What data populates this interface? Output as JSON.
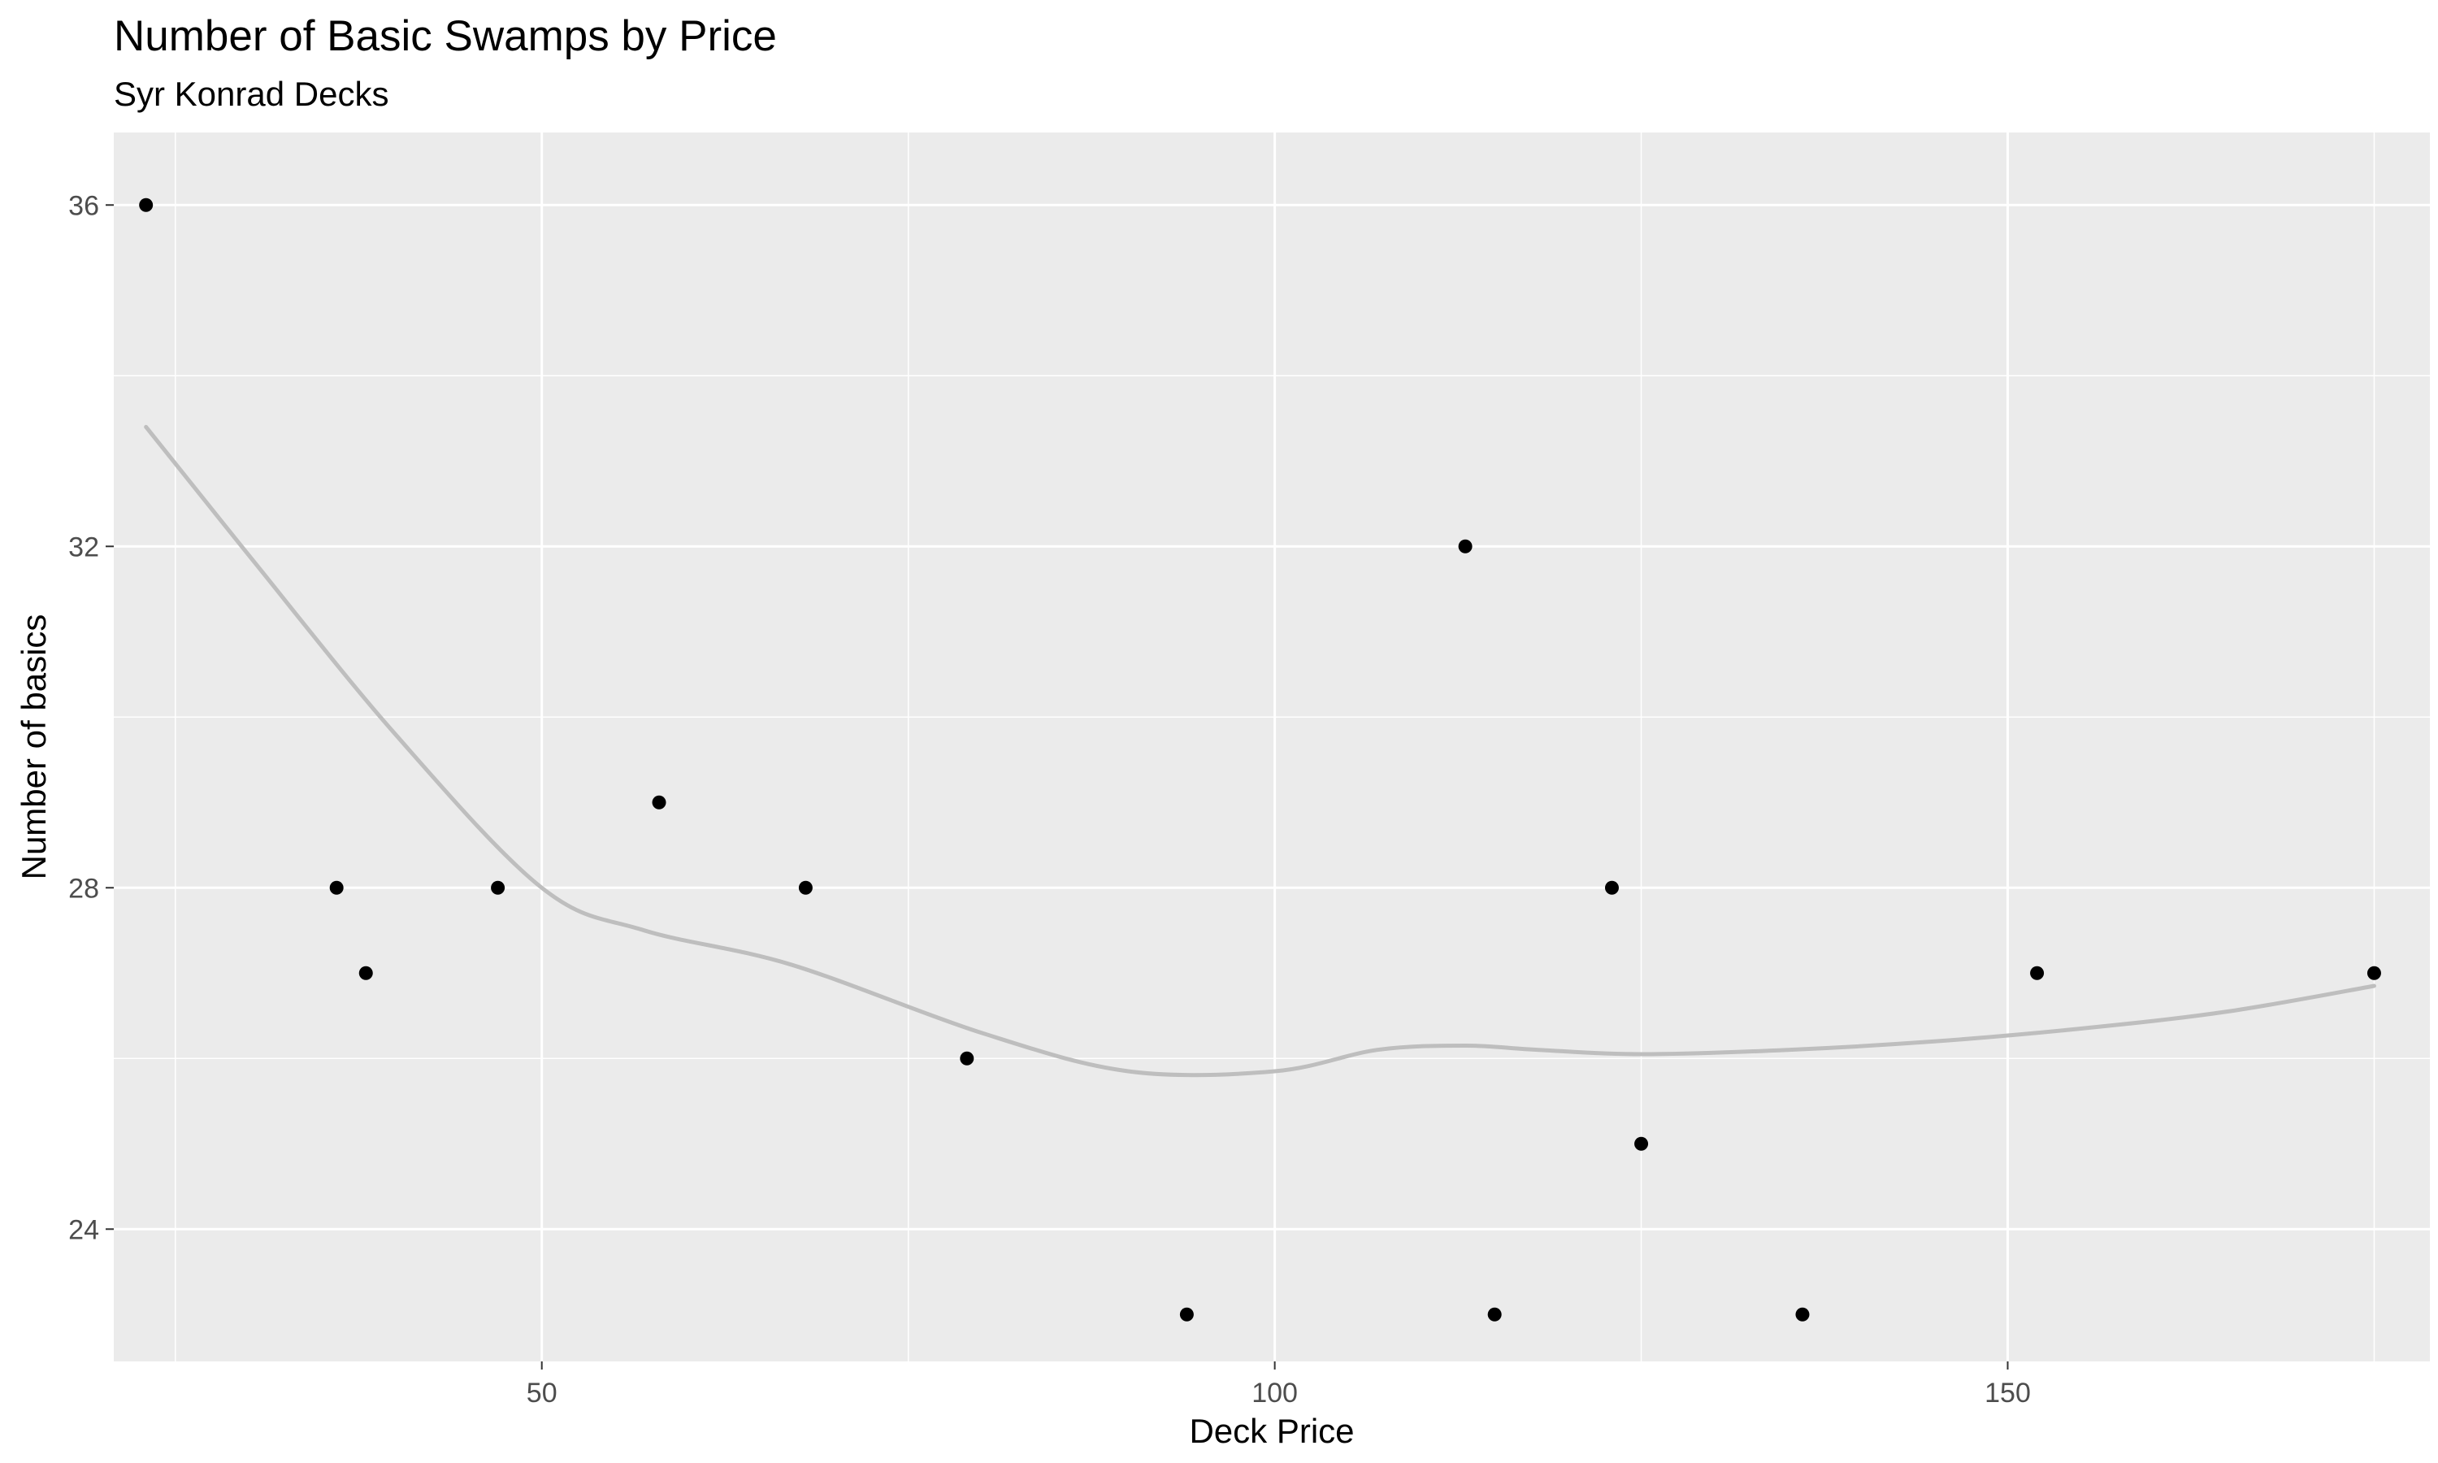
{
  "chart_data": {
    "type": "scatter",
    "title": "Number of Basic Swamps by Price",
    "subtitle": "Syr Konrad Decks",
    "xlabel": "Deck Price",
    "ylabel": "Number of basics",
    "xlim": [
      20.8,
      178.8
    ],
    "ylim": [
      22.45,
      36.85
    ],
    "x_ticks": [
      50,
      100,
      150
    ],
    "y_ticks": [
      24,
      28,
      32,
      36
    ],
    "grid": true,
    "legend": "none",
    "points": [
      {
        "x": 23,
        "y": 36
      },
      {
        "x": 36,
        "y": 28
      },
      {
        "x": 38,
        "y": 27
      },
      {
        "x": 47,
        "y": 28
      },
      {
        "x": 58,
        "y": 29
      },
      {
        "x": 68,
        "y": 28
      },
      {
        "x": 79,
        "y": 26
      },
      {
        "x": 94,
        "y": 23
      },
      {
        "x": 113,
        "y": 32
      },
      {
        "x": 115,
        "y": 23
      },
      {
        "x": 123,
        "y": 28
      },
      {
        "x": 125,
        "y": 25
      },
      {
        "x": 136,
        "y": 23
      },
      {
        "x": 152,
        "y": 27
      },
      {
        "x": 175,
        "y": 27
      }
    ],
    "smooth": {
      "method": "loess",
      "x": [
        23,
        30,
        40,
        50,
        57,
        67,
        80,
        90,
        100,
        107,
        113,
        118,
        125,
        135,
        145,
        155,
        165,
        175
      ],
      "y": [
        33.4,
        31.9,
        29.8,
        28.0,
        27.5,
        27.1,
        26.3,
        25.85,
        25.85,
        26.1,
        26.15,
        26.1,
        26.05,
        26.1,
        26.2,
        26.35,
        26.55,
        26.85
      ]
    },
    "colors": {
      "panel": "#ebebeb",
      "grid": "#ffffff",
      "point": "#000000",
      "smooth": "#bebebe",
      "tick_label": "#4d4d4d",
      "tick_mark": "#333333"
    }
  }
}
